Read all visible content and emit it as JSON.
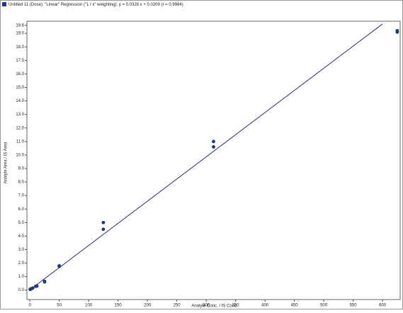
{
  "chart_data": {
    "type": "scatter",
    "title": "Untitled 11 (Dose): \"Linear\" Regression (\"1 / x\" weighting): y = 0.0328 x + 0.0209 (r = 0.9984)",
    "x_label": "Analyte Conc. / IS Conc.",
    "y_label": "Analyte Area / IS Area",
    "xlim": [
      -5,
      630
    ],
    "ylim": [
      -0.7,
      19.9
    ],
    "xticks": [
      0,
      50,
      100,
      150,
      200,
      250,
      300,
      350,
      400,
      450,
      500,
      550,
      600
    ],
    "yticks": [
      {
        "value": 0,
        "label": "0.0"
      },
      {
        "value": 1,
        "label": "1.0"
      },
      {
        "value": 2,
        "label": "2.0"
      },
      {
        "value": 3,
        "label": "3.0"
      },
      {
        "value": 4,
        "label": "4.0"
      },
      {
        "value": 5,
        "label": "5.0"
      },
      {
        "value": 6,
        "label": "6.0"
      },
      {
        "value": 7,
        "label": "7.0"
      },
      {
        "value": 8,
        "label": "8.0"
      },
      {
        "value": 9,
        "label": "9.0"
      },
      {
        "value": 10,
        "label": "10.0"
      },
      {
        "value": 11,
        "label": "11.0"
      },
      {
        "value": 12,
        "label": "12.0"
      },
      {
        "value": 13,
        "label": "13.0"
      },
      {
        "value": 14,
        "label": "14.0"
      },
      {
        "value": 15,
        "label": "15.0"
      },
      {
        "value": 16,
        "label": "16.0"
      },
      {
        "value": 17,
        "label": "17.0"
      },
      {
        "value": 18,
        "label": "18.0"
      },
      {
        "value": 19,
        "label": "19.0"
      },
      19.6
    ],
    "series": [
      {
        "color": "#1f3a7a",
        "x": [
          0.5,
          1,
          2.5,
          5,
          10,
          12,
          25,
          25,
          50,
          50,
          125,
          125,
          312.5,
          312.5,
          625,
          625
        ],
        "values": [
          0.05,
          0.08,
          0.1,
          0.15,
          0.28,
          0.3,
          0.6,
          0.65,
          1.75,
          1.8,
          5.0,
          4.5,
          11.0,
          10.6,
          19.2,
          19.1
        ]
      }
    ],
    "fit_line": {
      "color": "#2a2a8c",
      "x": [
        0,
        600
      ],
      "values": [
        0.02,
        19.7
      ]
    },
    "grid": false
  }
}
